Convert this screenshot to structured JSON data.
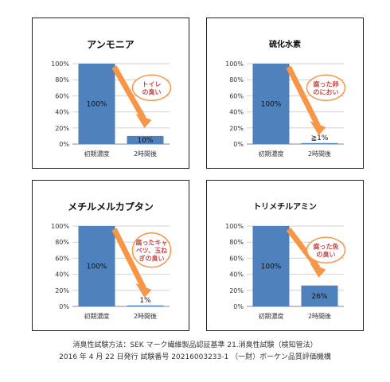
{
  "chart_data": [
    {
      "type": "bar",
      "title": "アンモニア",
      "categories": [
        "初期濃度",
        "2時間後"
      ],
      "values": [
        100,
        10
      ],
      "value_labels": [
        "100%",
        "10%"
      ],
      "yticks": [
        "0%",
        "20%",
        "40%",
        "60%",
        "80%",
        "100%"
      ],
      "ylim": [
        0,
        100
      ],
      "callout": [
        "トイレ",
        "の臭い"
      ],
      "bar_color": "#4f81bd",
      "arrow_color": "#f79646"
    },
    {
      "type": "bar",
      "title": "硫化水素",
      "categories": [
        "初期濃度",
        "2時間後"
      ],
      "values": [
        100,
        1
      ],
      "value_labels": [
        "100%",
        "≧1%"
      ],
      "yticks": [
        "0%",
        "20%",
        "40%",
        "60%",
        "80%",
        "100%"
      ],
      "ylim": [
        0,
        100
      ],
      "callout": [
        "腐った卵",
        "のにおい"
      ],
      "bar_color": "#4f81bd",
      "arrow_color": "#f79646"
    },
    {
      "type": "bar",
      "title": "メチルメルカプタン",
      "categories": [
        "初期濃度",
        "2時間後"
      ],
      "values": [
        100,
        1
      ],
      "value_labels": [
        "100%",
        "1%"
      ],
      "yticks": [
        "0%",
        "20%",
        "40%",
        "60%",
        "80%",
        "100%"
      ],
      "ylim": [
        0,
        100
      ],
      "callout": [
        "腐ったキャ",
        "ベツ、玉ね",
        "ぎの臭い"
      ],
      "bar_color": "#4f81bd",
      "arrow_color": "#f79646"
    },
    {
      "type": "bar",
      "title": "トリメチルアミン",
      "categories": [
        "初期濃度",
        "2時間後"
      ],
      "values": [
        100,
        26
      ],
      "value_labels": [
        "100%",
        "26%"
      ],
      "yticks": [
        "0%",
        "20%",
        "40%",
        "60%",
        "80%",
        "100%"
      ],
      "ylim": [
        0,
        100
      ],
      "callout": [
        "腐った魚",
        "の臭い"
      ],
      "bar_color": "#4f81bd",
      "arrow_color": "#f79646"
    }
  ],
  "footer": {
    "line1": "消臭性試験方法：SEK マーク繊維製品認証基準 21.消臭性試験（検知管法）",
    "line2": "2016 年 4 月 22 日発行 試験番号 20216003233-1 （一財）ボーケン品質評価機構"
  }
}
